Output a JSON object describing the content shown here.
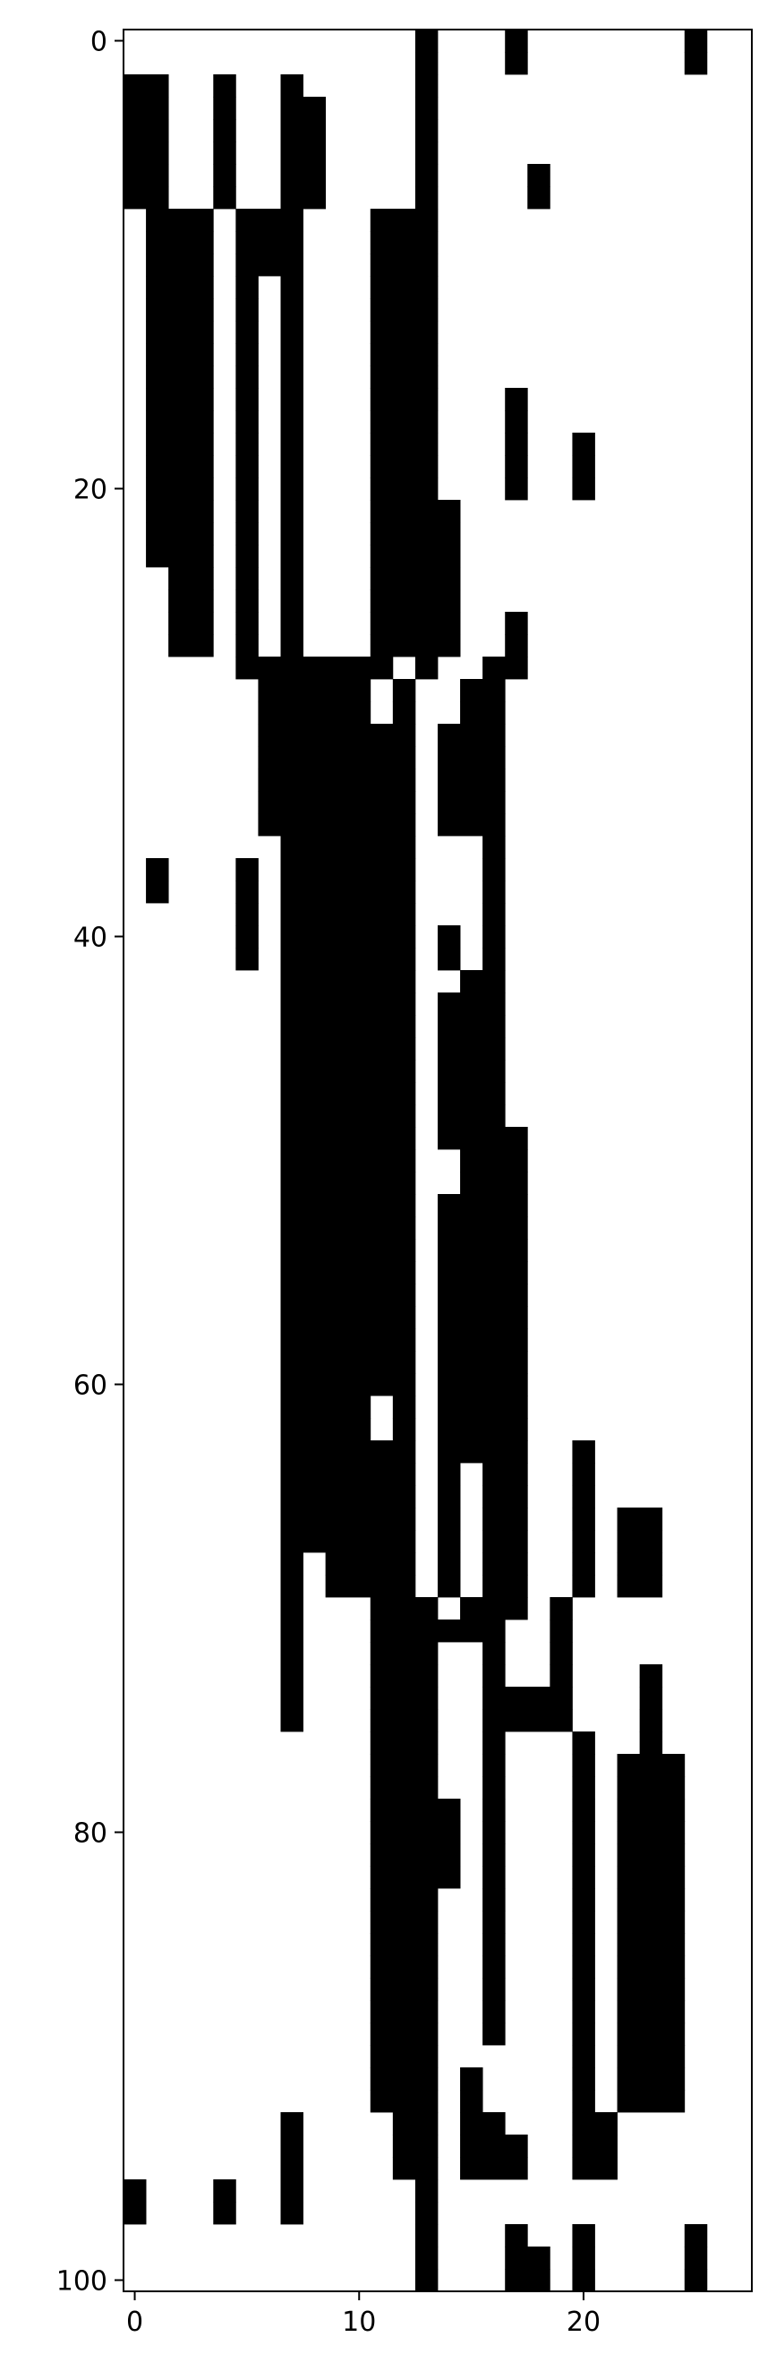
{
  "chart_data": {
    "type": "heatmap",
    "title": "",
    "xlabel": "",
    "ylabel": "",
    "colormap": "binary",
    "colors": {
      "on": "#000000",
      "off": "#ffffff",
      "frame": "#000000"
    },
    "xlim": [
      -0.5,
      27.5
    ],
    "ylim": [
      100.5,
      -0.5
    ],
    "x_ticks": [
      0,
      10,
      20
    ],
    "x_tick_labels": [
      "0",
      "10",
      "20"
    ],
    "y_ticks": [
      0,
      20,
      40,
      60,
      80,
      100
    ],
    "y_tick_labels": [
      "0",
      "20",
      "40",
      "60",
      "80",
      "100"
    ],
    "grid": false,
    "n_rows": 101,
    "n_cols": 28,
    "row_spans": [
      [
        [
          13,
          13
        ],
        [
          17,
          17
        ],
        [
          25,
          25
        ]
      ],
      [
        [
          13,
          13
        ],
        [
          17,
          17
        ],
        [
          25,
          25
        ]
      ],
      [
        [
          0,
          1
        ],
        [
          4,
          4
        ],
        [
          7,
          7
        ],
        [
          13,
          13
        ]
      ],
      [
        [
          0,
          1
        ],
        [
          4,
          4
        ],
        [
          7,
          8
        ],
        [
          13,
          13
        ]
      ],
      [
        [
          0,
          1
        ],
        [
          4,
          4
        ],
        [
          7,
          8
        ],
        [
          13,
          13
        ]
      ],
      [
        [
          0,
          1
        ],
        [
          4,
          4
        ],
        [
          7,
          8
        ],
        [
          13,
          13
        ]
      ],
      [
        [
          0,
          1
        ],
        [
          4,
          4
        ],
        [
          7,
          8
        ],
        [
          13,
          13
        ],
        [
          18,
          18
        ]
      ],
      [
        [
          0,
          1
        ],
        [
          4,
          4
        ],
        [
          7,
          8
        ],
        [
          13,
          13
        ],
        [
          18,
          18
        ]
      ],
      [
        [
          1,
          3
        ],
        [
          5,
          7
        ],
        [
          11,
          13
        ]
      ],
      [
        [
          1,
          3
        ],
        [
          5,
          7
        ],
        [
          11,
          13
        ]
      ],
      [
        [
          1,
          3
        ],
        [
          5,
          7
        ],
        [
          11,
          13
        ]
      ],
      [
        [
          1,
          3
        ],
        [
          5,
          5
        ],
        [
          7,
          7
        ],
        [
          11,
          13
        ]
      ],
      [
        [
          1,
          3
        ],
        [
          5,
          5
        ],
        [
          7,
          7
        ],
        [
          11,
          13
        ]
      ],
      [
        [
          1,
          3
        ],
        [
          5,
          5
        ],
        [
          7,
          7
        ],
        [
          11,
          13
        ]
      ],
      [
        [
          1,
          3
        ],
        [
          5,
          5
        ],
        [
          7,
          7
        ],
        [
          11,
          13
        ]
      ],
      [
        [
          1,
          3
        ],
        [
          5,
          5
        ],
        [
          7,
          7
        ],
        [
          11,
          13
        ]
      ],
      [
        [
          1,
          3
        ],
        [
          5,
          5
        ],
        [
          7,
          7
        ],
        [
          11,
          13
        ],
        [
          17,
          17
        ]
      ],
      [
        [
          1,
          3
        ],
        [
          5,
          5
        ],
        [
          7,
          7
        ],
        [
          11,
          13
        ],
        [
          17,
          17
        ]
      ],
      [
        [
          1,
          3
        ],
        [
          5,
          5
        ],
        [
          7,
          7
        ],
        [
          11,
          13
        ],
        [
          17,
          17
        ],
        [
          20,
          20
        ]
      ],
      [
        [
          1,
          3
        ],
        [
          5,
          5
        ],
        [
          7,
          7
        ],
        [
          11,
          13
        ],
        [
          17,
          17
        ],
        [
          20,
          20
        ]
      ],
      [
        [
          1,
          3
        ],
        [
          5,
          5
        ],
        [
          7,
          7
        ],
        [
          11,
          13
        ],
        [
          17,
          17
        ],
        [
          20,
          20
        ]
      ],
      [
        [
          1,
          3
        ],
        [
          5,
          5
        ],
        [
          7,
          7
        ],
        [
          11,
          14
        ]
      ],
      [
        [
          1,
          3
        ],
        [
          5,
          5
        ],
        [
          7,
          7
        ],
        [
          11,
          14
        ]
      ],
      [
        [
          1,
          3
        ],
        [
          5,
          5
        ],
        [
          7,
          7
        ],
        [
          11,
          14
        ]
      ],
      [
        [
          2,
          3
        ],
        [
          5,
          5
        ],
        [
          7,
          7
        ],
        [
          11,
          14
        ]
      ],
      [
        [
          2,
          3
        ],
        [
          5,
          5
        ],
        [
          7,
          7
        ],
        [
          11,
          14
        ]
      ],
      [
        [
          2,
          3
        ],
        [
          5,
          5
        ],
        [
          7,
          7
        ],
        [
          11,
          14
        ],
        [
          17,
          17
        ]
      ],
      [
        [
          2,
          3
        ],
        [
          5,
          5
        ],
        [
          7,
          7
        ],
        [
          11,
          14
        ],
        [
          17,
          17
        ]
      ],
      [
        [
          5,
          11
        ],
        [
          13,
          13
        ],
        [
          16,
          17
        ]
      ],
      [
        [
          6,
          10
        ],
        [
          12,
          12
        ],
        [
          15,
          16
        ]
      ],
      [
        [
          6,
          10
        ],
        [
          12,
          12
        ],
        [
          15,
          16
        ]
      ],
      [
        [
          6,
          12
        ],
        [
          14,
          16
        ]
      ],
      [
        [
          6,
          12
        ],
        [
          14,
          16
        ]
      ],
      [
        [
          6,
          12
        ],
        [
          14,
          16
        ]
      ],
      [
        [
          6,
          12
        ],
        [
          14,
          16
        ]
      ],
      [
        [
          6,
          12
        ],
        [
          14,
          16
        ]
      ],
      [
        [
          7,
          12
        ],
        [
          16,
          16
        ]
      ],
      [
        [
          1,
          1
        ],
        [
          5,
          5
        ],
        [
          7,
          12
        ],
        [
          16,
          16
        ]
      ],
      [
        [
          1,
          1
        ],
        [
          5,
          5
        ],
        [
          7,
          12
        ],
        [
          16,
          16
        ]
      ],
      [
        [
          5,
          5
        ],
        [
          7,
          12
        ],
        [
          16,
          16
        ]
      ],
      [
        [
          5,
          5
        ],
        [
          7,
          12
        ],
        [
          14,
          14
        ],
        [
          16,
          16
        ]
      ],
      [
        [
          5,
          5
        ],
        [
          7,
          12
        ],
        [
          14,
          14
        ],
        [
          16,
          16
        ]
      ],
      [
        [
          7,
          12
        ],
        [
          15,
          16
        ]
      ],
      [
        [
          7,
          12
        ],
        [
          14,
          16
        ]
      ],
      [
        [
          7,
          12
        ],
        [
          14,
          16
        ]
      ],
      [
        [
          7,
          12
        ],
        [
          14,
          16
        ]
      ],
      [
        [
          7,
          12
        ],
        [
          14,
          16
        ]
      ],
      [
        [
          7,
          12
        ],
        [
          14,
          16
        ]
      ],
      [
        [
          7,
          12
        ],
        [
          14,
          16
        ]
      ],
      [
        [
          7,
          12
        ],
        [
          14,
          17
        ]
      ],
      [
        [
          7,
          12
        ],
        [
          15,
          17
        ]
      ],
      [
        [
          7,
          12
        ],
        [
          15,
          17
        ]
      ],
      [
        [
          7,
          12
        ],
        [
          14,
          17
        ]
      ],
      [
        [
          7,
          12
        ],
        [
          14,
          17
        ]
      ],
      [
        [
          7,
          12
        ],
        [
          14,
          17
        ]
      ],
      [
        [
          7,
          12
        ],
        [
          14,
          17
        ]
      ],
      [
        [
          7,
          12
        ],
        [
          14,
          17
        ]
      ],
      [
        [
          7,
          12
        ],
        [
          14,
          17
        ]
      ],
      [
        [
          7,
          12
        ],
        [
          14,
          17
        ]
      ],
      [
        [
          7,
          12
        ],
        [
          14,
          17
        ]
      ],
      [
        [
          7,
          12
        ],
        [
          14,
          17
        ]
      ],
      [
        [
          7,
          10
        ],
        [
          12,
          12
        ],
        [
          14,
          17
        ]
      ],
      [
        [
          7,
          10
        ],
        [
          12,
          12
        ],
        [
          14,
          17
        ]
      ],
      [
        [
          7,
          12
        ],
        [
          14,
          17
        ],
        [
          20,
          20
        ]
      ],
      [
        [
          7,
          12
        ],
        [
          14,
          14
        ],
        [
          16,
          17
        ],
        [
          20,
          20
        ]
      ],
      [
        [
          7,
          12
        ],
        [
          14,
          14
        ],
        [
          16,
          17
        ],
        [
          20,
          20
        ]
      ],
      [
        [
          7,
          12
        ],
        [
          14,
          14
        ],
        [
          16,
          17
        ],
        [
          20,
          20
        ],
        [
          22,
          23
        ]
      ],
      [
        [
          7,
          12
        ],
        [
          14,
          14
        ],
        [
          16,
          17
        ],
        [
          20,
          20
        ],
        [
          22,
          23
        ]
      ],
      [
        [
          7,
          7
        ],
        [
          9,
          12
        ],
        [
          14,
          14
        ],
        [
          16,
          17
        ],
        [
          20,
          20
        ],
        [
          22,
          23
        ]
      ],
      [
        [
          7,
          7
        ],
        [
          9,
          12
        ],
        [
          14,
          14
        ],
        [
          16,
          17
        ],
        [
          20,
          20
        ],
        [
          22,
          23
        ]
      ],
      [
        [
          7,
          7
        ],
        [
          11,
          13
        ],
        [
          15,
          17
        ],
        [
          19,
          19
        ]
      ],
      [
        [
          7,
          7
        ],
        [
          11,
          13
        ],
        [
          14,
          16
        ],
        [
          19,
          19
        ]
      ],
      [
        [
          7,
          7
        ],
        [
          11,
          13
        ],
        [
          16,
          16
        ],
        [
          19,
          19
        ]
      ],
      [
        [
          7,
          7
        ],
        [
          11,
          13
        ],
        [
          16,
          16
        ],
        [
          19,
          19
        ],
        [
          23,
          23
        ]
      ],
      [
        [
          7,
          7
        ],
        [
          11,
          13
        ],
        [
          16,
          19
        ],
        [
          23,
          23
        ]
      ],
      [
        [
          7,
          7
        ],
        [
          11,
          13
        ],
        [
          16,
          19
        ],
        [
          23,
          23
        ]
      ],
      [
        [
          11,
          13
        ],
        [
          16,
          16
        ],
        [
          20,
          20
        ],
        [
          23,
          23
        ]
      ],
      [
        [
          11,
          13
        ],
        [
          16,
          16
        ],
        [
          20,
          20
        ],
        [
          22,
          24
        ]
      ],
      [
        [
          11,
          13
        ],
        [
          16,
          16
        ],
        [
          20,
          20
        ],
        [
          22,
          24
        ]
      ],
      [
        [
          11,
          14
        ],
        [
          16,
          16
        ],
        [
          20,
          20
        ],
        [
          22,
          24
        ]
      ],
      [
        [
          11,
          14
        ],
        [
          16,
          16
        ],
        [
          20,
          20
        ],
        [
          22,
          24
        ]
      ],
      [
        [
          11,
          14
        ],
        [
          16,
          16
        ],
        [
          20,
          20
        ],
        [
          22,
          24
        ]
      ],
      [
        [
          11,
          14
        ],
        [
          16,
          16
        ],
        [
          20,
          20
        ],
        [
          22,
          24
        ]
      ],
      [
        [
          11,
          13
        ],
        [
          16,
          16
        ],
        [
          20,
          20
        ],
        [
          22,
          24
        ]
      ],
      [
        [
          11,
          13
        ],
        [
          16,
          16
        ],
        [
          20,
          20
        ],
        [
          22,
          24
        ]
      ],
      [
        [
          11,
          13
        ],
        [
          16,
          16
        ],
        [
          20,
          20
        ],
        [
          22,
          24
        ]
      ],
      [
        [
          11,
          13
        ],
        [
          16,
          16
        ],
        [
          20,
          20
        ],
        [
          22,
          24
        ]
      ],
      [
        [
          11,
          13
        ],
        [
          16,
          16
        ],
        [
          20,
          20
        ],
        [
          22,
          24
        ]
      ],
      [
        [
          11,
          13
        ],
        [
          16,
          16
        ],
        [
          20,
          20
        ],
        [
          22,
          24
        ]
      ],
      [
        [
          11,
          13
        ],
        [
          16,
          16
        ],
        [
          20,
          20
        ],
        [
          22,
          24
        ]
      ],
      [
        [
          11,
          13
        ],
        [
          20,
          20
        ],
        [
          22,
          24
        ]
      ],
      [
        [
          11,
          13
        ],
        [
          15,
          15
        ],
        [
          20,
          20
        ],
        [
          22,
          24
        ]
      ],
      [
        [
          11,
          13
        ],
        [
          15,
          15
        ],
        [
          20,
          20
        ],
        [
          22,
          24
        ]
      ],
      [
        [
          7,
          7
        ],
        [
          12,
          13
        ],
        [
          15,
          16
        ],
        [
          20,
          21
        ]
      ],
      [
        [
          7,
          7
        ],
        [
          12,
          13
        ],
        [
          15,
          17
        ],
        [
          20,
          21
        ]
      ],
      [
        [
          7,
          7
        ],
        [
          12,
          13
        ],
        [
          15,
          17
        ],
        [
          20,
          21
        ]
      ],
      [
        [
          0,
          0
        ],
        [
          4,
          4
        ],
        [
          7,
          7
        ],
        [
          13,
          13
        ]
      ],
      [
        [
          0,
          0
        ],
        [
          4,
          4
        ],
        [
          7,
          7
        ],
        [
          13,
          13
        ]
      ],
      [
        [
          13,
          13
        ],
        [
          17,
          17
        ],
        [
          20,
          20
        ],
        [
          25,
          25
        ]
      ],
      [
        [
          13,
          13
        ],
        [
          17,
          18
        ],
        [
          20,
          20
        ],
        [
          25,
          25
        ]
      ],
      [
        [
          13,
          13
        ],
        [
          17,
          18
        ],
        [
          20,
          20
        ],
        [
          25,
          25
        ]
      ]
    ]
  }
}
